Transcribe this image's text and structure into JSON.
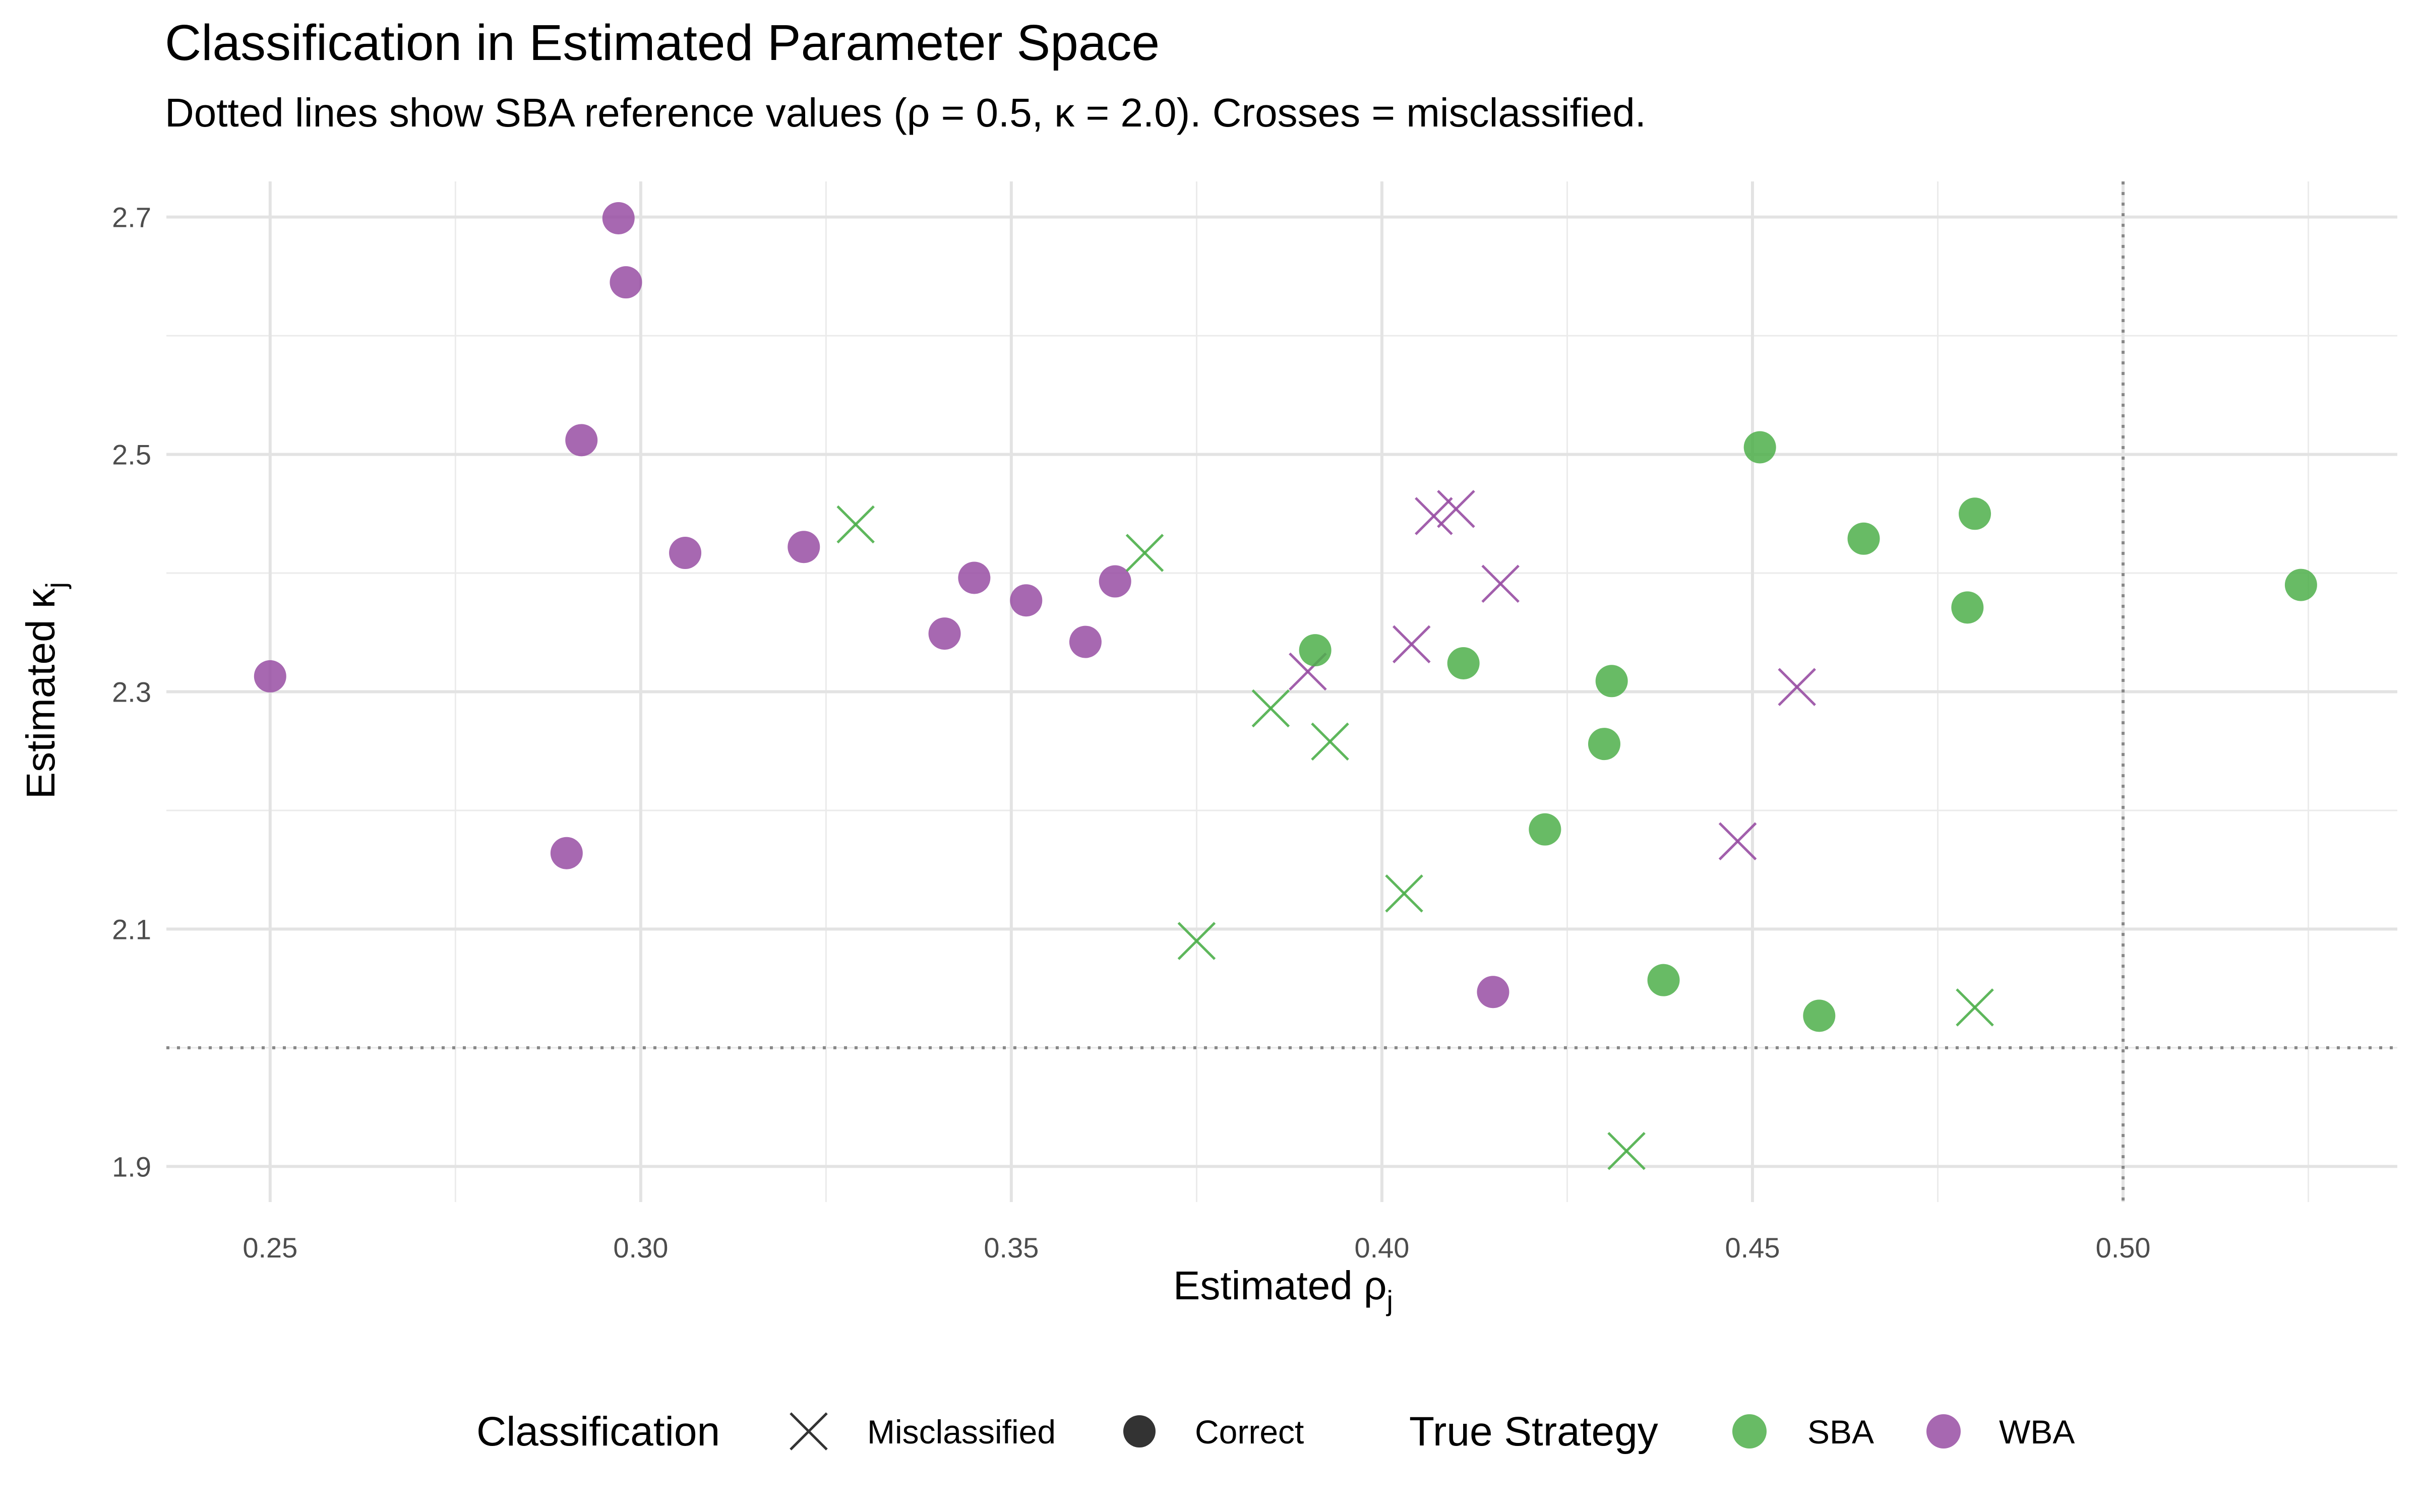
{
  "chart_data": {
    "type": "scatter",
    "title": "Classification in Estimated Parameter Space",
    "subtitle": "Dotted lines show SBA reference values (ρ = 0.5, κ = 2.0). Crosses = misclassified.",
    "xlabel": "Estimated ρ",
    "xlabel_sub": "j",
    "ylabel": "Estimated κ",
    "ylabel_sub": "j",
    "xlim": [
      0.236,
      0.537
    ],
    "ylim": [
      1.87,
      2.73
    ],
    "x_ticks": [
      0.25,
      0.3,
      0.35,
      0.4,
      0.45,
      0.5
    ],
    "x_tick_labels": [
      "0.25",
      "0.30",
      "0.35",
      "0.40",
      "0.45",
      "0.50"
    ],
    "x_minor_ticks": [
      0.275,
      0.325,
      0.375,
      0.425,
      0.475,
      0.525
    ],
    "y_ticks": [
      1.9,
      2.1,
      2.3,
      2.5,
      2.7
    ],
    "y_tick_labels": [
      "1.9",
      "2.1",
      "2.3",
      "2.5",
      "2.7"
    ],
    "y_minor_ticks": [
      2.0,
      2.2,
      2.4,
      2.6
    ],
    "grid": true,
    "reference_lines": {
      "x": 0.5,
      "y": 2.0,
      "style": "dotted",
      "color": "#888888"
    },
    "legend_position": "bottom",
    "legends": [
      {
        "title": "Classification",
        "entries": [
          {
            "label": "Misclassified",
            "shape": "cross"
          },
          {
            "label": "Correct",
            "shape": "circle"
          }
        ]
      },
      {
        "title": "True Strategy",
        "entries": [
          {
            "label": "SBA",
            "color": "#4DAF4A"
          },
          {
            "label": "WBA",
            "color": "#984EA3"
          }
        ]
      }
    ],
    "colors": {
      "SBA": "#4DAF4A",
      "WBA": "#984EA3"
    },
    "series": [
      {
        "name": "WBA",
        "classification": "Correct",
        "points": [
          [
            0.297,
            2.699
          ],
          [
            0.298,
            2.645
          ],
          [
            0.292,
            2.512
          ],
          [
            0.25,
            2.313
          ],
          [
            0.306,
            2.417
          ],
          [
            0.322,
            2.422
          ],
          [
            0.29,
            2.164
          ],
          [
            0.341,
            2.349
          ],
          [
            0.345,
            2.396
          ],
          [
            0.352,
            2.377
          ],
          [
            0.36,
            2.342
          ],
          [
            0.364,
            2.393
          ],
          [
            0.415,
            2.047
          ]
        ]
      },
      {
        "name": "WBA",
        "classification": "Misclassified",
        "points": [
          [
            0.407,
            2.448
          ],
          [
            0.41,
            2.454
          ],
          [
            0.416,
            2.391
          ],
          [
            0.404,
            2.34
          ],
          [
            0.39,
            2.317
          ],
          [
            0.456,
            2.304
          ],
          [
            0.448,
            2.174
          ]
        ]
      },
      {
        "name": "SBA",
        "classification": "Correct",
        "points": [
          [
            0.451,
            2.506
          ],
          [
            0.465,
            2.429
          ],
          [
            0.48,
            2.45
          ],
          [
            0.479,
            2.371
          ],
          [
            0.524,
            2.39
          ],
          [
            0.391,
            2.335
          ],
          [
            0.411,
            2.324
          ],
          [
            0.431,
            2.309
          ],
          [
            0.43,
            2.256
          ],
          [
            0.422,
            2.184
          ],
          [
            0.438,
            2.057
          ],
          [
            0.459,
            2.027
          ]
        ]
      },
      {
        "name": "SBA",
        "classification": "Misclassified",
        "points": [
          [
            0.329,
            2.441
          ],
          [
            0.368,
            2.417
          ],
          [
            0.385,
            2.286
          ],
          [
            0.393,
            2.258
          ],
          [
            0.375,
            2.09
          ],
          [
            0.403,
            2.13
          ],
          [
            0.48,
            2.034
          ],
          [
            0.433,
            1.913
          ]
        ]
      }
    ]
  }
}
